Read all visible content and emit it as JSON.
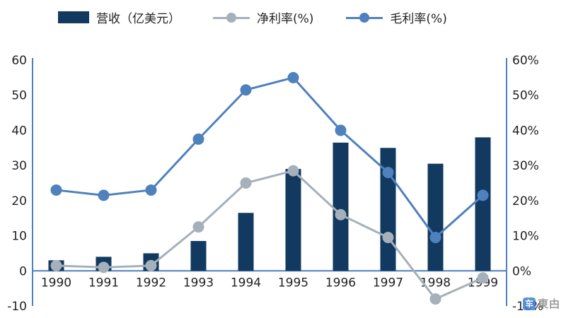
{
  "legend": {
    "items": [
      {
        "label": "营收（亿美元）",
        "kind": "bar",
        "color": "#12395f"
      },
      {
        "label": "净利率(%)",
        "kind": "line",
        "color": "#a6b0ba"
      },
      {
        "label": "毛利率(%)",
        "kind": "line",
        "color": "#4f81bd"
      }
    ]
  },
  "watermark": {
    "icon": "车",
    "text": "東甴"
  },
  "chart_data": {
    "type": "bar",
    "subtype": "combo-bar-line",
    "categories": [
      "1990",
      "1991",
      "1992",
      "1993",
      "1994",
      "1995",
      "1996",
      "1997",
      "1998",
      "1999"
    ],
    "series": [
      {
        "name": "营收（亿美元）",
        "type": "bar",
        "axis": "left",
        "color": "#12395f",
        "values": [
          3,
          4,
          5,
          8.5,
          16.5,
          29,
          36.5,
          35,
          30.5,
          38
        ]
      },
      {
        "name": "净利率(%)",
        "type": "line",
        "axis": "right",
        "color": "#a6b0ba",
        "values": [
          1.5,
          1,
          1.5,
          12.5,
          25,
          28.5,
          16,
          9.5,
          -8,
          -2
        ]
      },
      {
        "name": "毛利率(%)",
        "type": "line",
        "axis": "right",
        "color": "#4f81bd",
        "values": [
          23,
          21.5,
          23,
          37.5,
          51.5,
          55,
          40,
          28,
          9.5,
          21.5
        ]
      }
    ],
    "left_axis": {
      "min": -10,
      "max": 60,
      "step": 10,
      "format": "number"
    },
    "right_axis": {
      "min": -10,
      "max": 60,
      "step": 10,
      "format": "percent"
    },
    "axis_color": "#4f81bd",
    "tick_label_color": "#222222",
    "grid": false,
    "legend_position": "top"
  }
}
